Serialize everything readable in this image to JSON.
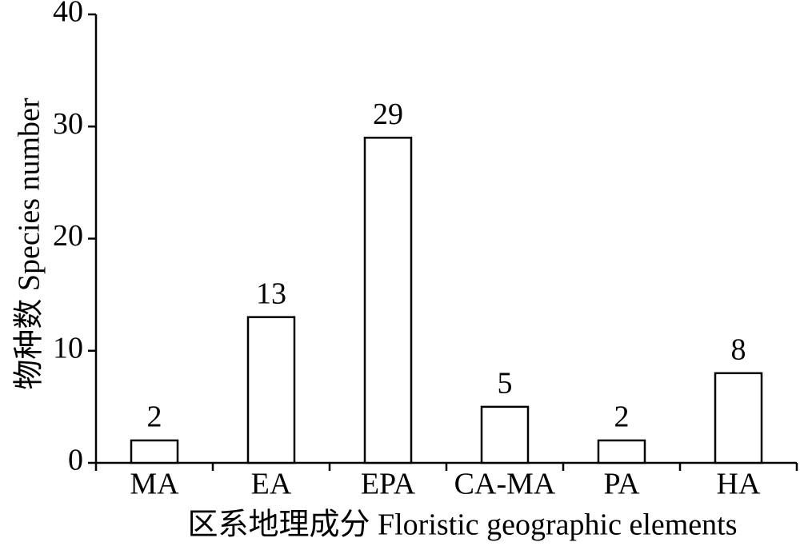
{
  "chart_data": {
    "type": "bar",
    "x_label": "区系地理成分 Floristic geographic elements",
    "y_label": "物种数 Species number",
    "categories": [
      "MA",
      "EA",
      "EPA",
      "CA-MA",
      "PA",
      "HA"
    ],
    "values": [
      2,
      13,
      29,
      5,
      2,
      8
    ],
    "color": "#ffffff",
    "ylim": [
      0,
      40
    ],
    "yticks": [
      0,
      10,
      20,
      30,
      40
    ],
    "grid": false
  }
}
